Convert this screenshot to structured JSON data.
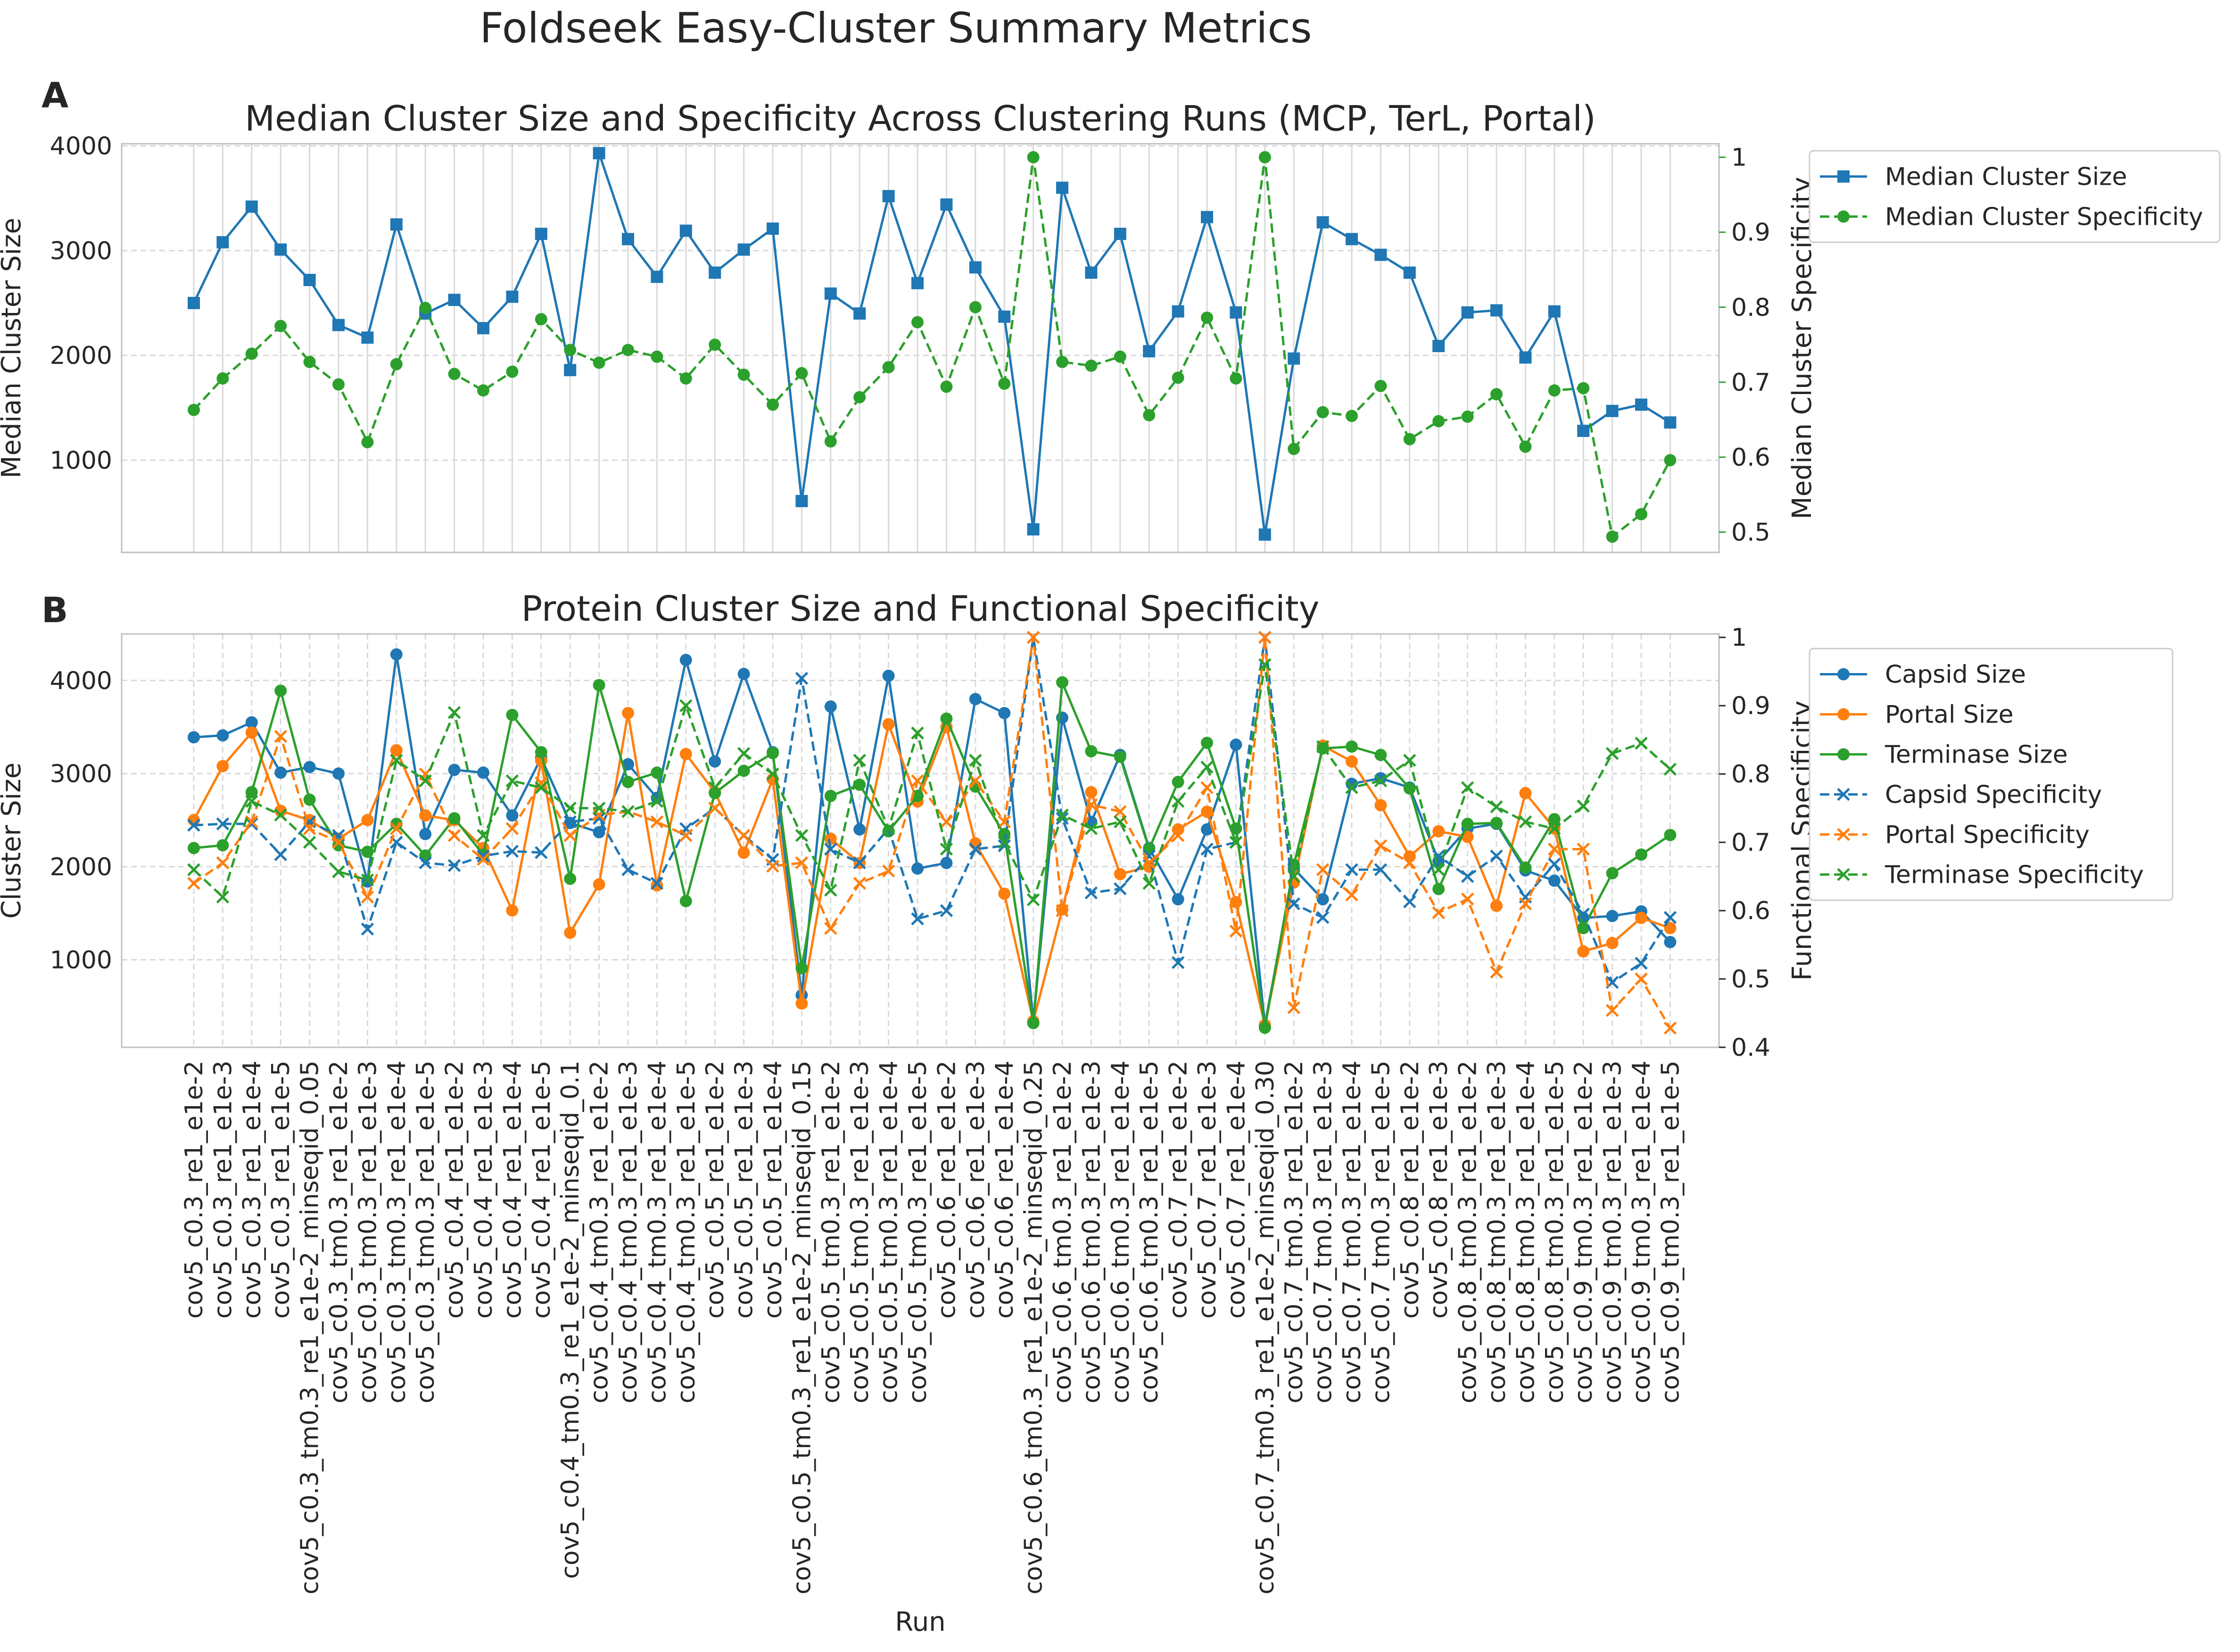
{
  "figure": {
    "title": "Foldseek Easy-Cluster Summary Metrics",
    "panel_a_letter": "A",
    "panel_b_letter": "B"
  },
  "colors": {
    "blue": "#1f77b4",
    "orange": "#ff7f0e",
    "green": "#2ca02c",
    "grid": "#d9d9d9",
    "axis": "#bfbfbf",
    "text": "#262626"
  },
  "chart_data": [
    {
      "type": "line",
      "title": "Median Cluster Size and Specificity Across Clustering Runs (MCP, TerL, Portal)",
      "xlabel": "",
      "ylabel": "Median Cluster Size",
      "ylabel_right": "Median Cluster Specificity",
      "ylim": [
        120,
        4020
      ],
      "ylim_right": [
        0.473,
        1.018
      ],
      "yticks": [
        1000,
        2000,
        3000,
        4000
      ],
      "yticks_right": [
        0.5,
        0.6,
        0.7,
        0.8,
        0.9,
        1.0
      ],
      "grid": true,
      "legend": "right, outside",
      "categories": [
        "cov5_c0.3_re1_e1e-2",
        "cov5_c0.3_re1_e1e-3",
        "cov5_c0.3_re1_e1e-4",
        "cov5_c0.3_re1_e1e-5",
        "cov5_c0.3_tm0.3_re1_e1e-2_minseqid_0.05",
        "cov5_c0.3_tm0.3_re1_e1e-2",
        "cov5_c0.3_tm0.3_re1_e1e-3",
        "cov5_c0.3_tm0.3_re1_e1e-4",
        "cov5_c0.3_tm0.3_re1_e1e-5",
        "cov5_c0.4_re1_e1e-2",
        "cov5_c0.4_re1_e1e-3",
        "cov5_c0.4_re1_e1e-4",
        "cov5_c0.4_re1_e1e-5",
        "cov5_c0.4_tm0.3_re1_e1e-2_minseqid_0.1",
        "cov5_c0.4_tm0.3_re1_e1e-2",
        "cov5_c0.4_tm0.3_re1_e1e-3",
        "cov5_c0.4_tm0.3_re1_e1e-4",
        "cov5_c0.4_tm0.3_re1_e1e-5",
        "cov5_c0.5_re1_e1e-2",
        "cov5_c0.5_re1_e1e-3",
        "cov5_c0.5_re1_e1e-4",
        "cov5_c0.5_tm0.3_re1_e1e-2_minseqid_0.15",
        "cov5_c0.5_tm0.3_re1_e1e-2",
        "cov5_c0.5_tm0.3_re1_e1e-3",
        "cov5_c0.5_tm0.3_re1_e1e-4",
        "cov5_c0.5_tm0.3_re1_e1e-5",
        "cov5_c0.6_re1_e1e-2",
        "cov5_c0.6_re1_e1e-3",
        "cov5_c0.6_re1_e1e-4",
        "cov5_c0.6_tm0.3_re1_e1e-2_minseqid_0.25",
        "cov5_c0.6_tm0.3_re1_e1e-2",
        "cov5_c0.6_tm0.3_re1_e1e-3",
        "cov5_c0.6_tm0.3_re1_e1e-4",
        "cov5_c0.6_tm0.3_re1_e1e-5",
        "cov5_c0.7_re1_e1e-2",
        "cov5_c0.7_re1_e1e-3",
        "cov5_c0.7_re1_e1e-4",
        "cov5_c0.7_tm0.3_re1_e1e-2_minseqid_0.30",
        "cov5_c0.7_tm0.3_re1_e1e-2",
        "cov5_c0.7_tm0.3_re1_e1e-3",
        "cov5_c0.7_tm0.3_re1_e1e-4",
        "cov5_c0.7_tm0.3_re1_e1e-5",
        "cov5_c0.8_re1_e1e-2",
        "cov5_c0.8_re1_e1e-3",
        "cov5_c0.8_tm0.3_re1_e1e-2",
        "cov5_c0.8_tm0.3_re1_e1e-3",
        "cov5_c0.8_tm0.3_re1_e1e-4",
        "cov5_c0.8_tm0.3_re1_e1e-5",
        "cov5_c0.9_tm0.3_re1_e1e-2",
        "cov5_c0.9_tm0.3_re1_e1e-3",
        "cov5_c0.9_tm0.3_re1_e1e-4",
        "cov5_c0.9_tm0.3_re1_e1e-5"
      ],
      "series": [
        {
          "name": "Median Cluster Size",
          "axis": "left",
          "color": "#1f77b4",
          "marker": "square",
          "linestyle": "solid",
          "values": [
            2500,
            3080,
            3420,
            3010,
            2720,
            2290,
            2170,
            3250,
            2400,
            2530,
            2260,
            2560,
            3160,
            1860,
            3930,
            3110,
            2750,
            3190,
            2790,
            3010,
            3210,
            610,
            2590,
            2400,
            3520,
            2690,
            3440,
            2840,
            2370,
            340,
            3600,
            2790,
            3160,
            2040,
            2420,
            3320,
            2410,
            290,
            1970,
            3270,
            3110,
            2960,
            2790,
            2090,
            2410,
            2430,
            1980,
            2420,
            1280,
            1470,
            1530,
            1360
          ]
        },
        {
          "name": "Median Cluster Specificity",
          "axis": "right",
          "color": "#2ca02c",
          "marker": "circle",
          "linestyle": "dashed",
          "values": [
            0.663,
            0.705,
            0.738,
            0.775,
            0.727,
            0.697,
            0.62,
            0.724,
            0.799,
            0.711,
            0.689,
            0.714,
            0.784,
            0.743,
            0.726,
            0.743,
            0.734,
            0.705,
            0.75,
            0.71,
            0.67,
            0.712,
            0.621,
            0.68,
            0.72,
            0.78,
            0.694,
            0.8,
            0.698,
            1.0,
            0.727,
            0.722,
            0.734,
            0.656,
            0.706,
            0.786,
            0.705,
            1.0,
            0.611,
            0.66,
            0.655,
            0.695,
            0.624,
            0.648,
            0.654,
            0.684,
            0.614,
            0.689,
            0.692,
            0.494,
            0.524,
            0.596
          ]
        }
      ]
    },
    {
      "type": "line",
      "title": "Protein Cluster Size and Functional Specificity",
      "xlabel": "Run",
      "ylabel": "Cluster Size",
      "ylabel_right": "Functional Specificity",
      "ylim": [
        60,
        4500
      ],
      "ylim_right": [
        0.4,
        1.005
      ],
      "yticks": [
        1000,
        2000,
        3000,
        4000
      ],
      "yticks_right": [
        0.4,
        0.5,
        0.6,
        0.7,
        0.8,
        0.9,
        1.0
      ],
      "grid": true,
      "legend": "right, outside",
      "series": [
        {
          "name": "Capsid Size",
          "axis": "left",
          "color": "#1f77b4",
          "marker": "circle",
          "linestyle": "solid",
          "values": [
            3390,
            3410,
            3550,
            3010,
            3070,
            3000,
            1840,
            4280,
            2350,
            3040,
            3010,
            2550,
            3170,
            2470,
            2370,
            3100,
            2740,
            4220,
            3130,
            4070,
            3230,
            620,
            3720,
            2400,
            4050,
            1980,
            2040,
            3800,
            3650,
            330,
            3600,
            2480,
            3200,
            2200,
            1650,
            2400,
            3310,
            300,
            1980,
            1650,
            2890,
            2950,
            2850,
            2060,
            2410,
            2460,
            1960,
            1850,
            1450,
            1470,
            1520,
            1190
          ]
        },
        {
          "name": "Portal Size",
          "axis": "left",
          "color": "#ff7f0e",
          "marker": "circle",
          "linestyle": "solid",
          "values": [
            2500,
            3080,
            3440,
            2600,
            2500,
            2300,
            2500,
            3250,
            2550,
            2500,
            2200,
            1530,
            3140,
            1290,
            1810,
            3650,
            1800,
            3210,
            2800,
            2150,
            2940,
            530,
            2300,
            2040,
            3530,
            2700,
            3500,
            2250,
            1710,
            340,
            1540,
            2800,
            1920,
            2000,
            2400,
            2590,
            1620,
            300,
            1830,
            3300,
            3130,
            2660,
            2110,
            2380,
            2320,
            1580,
            2790,
            2410,
            1090,
            1180,
            1450,
            1340
          ]
        },
        {
          "name": "Terminase Size",
          "axis": "left",
          "color": "#2ca02c",
          "marker": "circle",
          "linestyle": "solid",
          "values": [
            2200,
            2230,
            2800,
            3890,
            2720,
            2230,
            2160,
            2460,
            2120,
            2520,
            2130,
            3630,
            3230,
            1870,
            3950,
            2910,
            3010,
            1630,
            2790,
            3030,
            3220,
            910,
            2760,
            2880,
            2380,
            2760,
            3590,
            2860,
            2350,
            320,
            3980,
            3240,
            3180,
            2190,
            2910,
            3330,
            2410,
            270,
            2020,
            3270,
            3290,
            3200,
            2840,
            1760,
            2460,
            2470,
            1990,
            2510,
            1340,
            1930,
            2130,
            2340
          ]
        },
        {
          "name": "Capsid Specificity",
          "axis": "right",
          "color": "#1f77b4",
          "marker": "x",
          "linestyle": "dashed",
          "values": [
            0.725,
            0.727,
            0.727,
            0.682,
            0.73,
            0.71,
            0.573,
            0.7,
            0.67,
            0.666,
            0.68,
            0.687,
            0.685,
            0.73,
            0.735,
            0.66,
            0.64,
            0.72,
            0.75,
            0.71,
            0.675,
            0.94,
            0.69,
            0.67,
            0.72,
            0.588,
            0.6,
            0.69,
            0.695,
            1.0,
            0.735,
            0.626,
            0.632,
            0.68,
            0.524,
            0.69,
            0.7,
            1.0,
            0.61,
            0.59,
            0.66,
            0.66,
            0.613,
            0.68,
            0.65,
            0.68,
            0.62,
            0.668,
            0.595,
            0.495,
            0.523,
            0.59
          ]
        },
        {
          "name": "Portal Specificity",
          "axis": "right",
          "color": "#ff7f0e",
          "marker": "x",
          "linestyle": "dashed",
          "values": [
            0.64,
            0.67,
            0.73,
            0.855,
            0.72,
            0.7,
            0.62,
            0.72,
            0.8,
            0.71,
            0.675,
            0.72,
            0.787,
            0.71,
            0.74,
            0.745,
            0.73,
            0.71,
            0.75,
            0.71,
            0.665,
            0.67,
            0.574,
            0.64,
            0.658,
            0.79,
            0.73,
            0.79,
            0.73,
            1.0,
            0.6,
            0.755,
            0.745,
            0.67,
            0.71,
            0.78,
            0.57,
            1.0,
            0.458,
            0.66,
            0.623,
            0.695,
            0.67,
            0.597,
            0.617,
            0.51,
            0.61,
            0.69,
            0.69,
            0.454,
            0.5,
            0.428
          ]
        },
        {
          "name": "Terminase Specificity",
          "axis": "right",
          "color": "#2ca02c",
          "marker": "x",
          "linestyle": "dashed",
          "values": [
            0.66,
            0.62,
            0.76,
            0.74,
            0.7,
            0.657,
            0.645,
            0.82,
            0.79,
            0.89,
            0.71,
            0.79,
            0.78,
            0.75,
            0.75,
            0.745,
            0.76,
            0.9,
            0.78,
            0.83,
            0.8,
            0.71,
            0.63,
            0.82,
            0.72,
            0.86,
            0.69,
            0.82,
            0.7,
            0.616,
            0.74,
            0.72,
            0.73,
            0.64,
            0.76,
            0.81,
            0.7,
            0.96,
            0.65,
            0.84,
            0.78,
            0.79,
            0.82,
            0.66,
            0.78,
            0.752,
            0.73,
            0.72,
            0.753,
            0.83,
            0.845,
            0.807
          ]
        }
      ]
    }
  ]
}
